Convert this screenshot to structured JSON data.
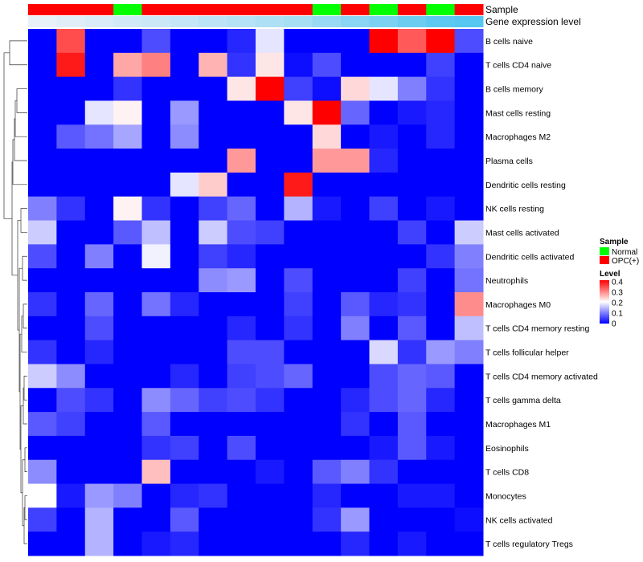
{
  "chart_data": {
    "type": "heatmap",
    "rows": [
      "B cells naive",
      "T cells CD4 naive",
      "B cells memory",
      "Mast cells resting",
      "Macrophages M2",
      "Plasma cells",
      "Dendritic cells resting",
      "NK cells resting",
      "Mast cells activated",
      "Dendritic cells activated",
      "Neutrophils",
      "Macrophages M0",
      "T cells CD4 memory resting",
      "T cells follicular helper",
      "T cells CD4 memory activated",
      "T cells gamma delta",
      "Macrophages M1",
      "Eosinophils",
      "T cells CD8",
      "Monocytes",
      "NK cells activated",
      "T cells regulatory  Tregs"
    ],
    "values": [
      [
        0.0,
        0.34,
        0.0,
        0.0,
        0.06,
        0.0,
        0.0,
        0.03,
        0.18,
        0.0,
        0.0,
        0.0,
        0.4,
        0.33,
        0.4,
        0.06
      ],
      [
        0.0,
        0.38,
        0.0,
        0.27,
        0.3,
        0.0,
        0.26,
        0.04,
        0.22,
        0.01,
        0.06,
        0.0,
        0.0,
        0.0,
        0.05,
        0.0
      ],
      [
        0.0,
        0.0,
        0.0,
        0.04,
        0.0,
        0.0,
        0.0,
        0.22,
        0.4,
        0.05,
        0.01,
        0.23,
        0.18,
        0.1,
        0.04,
        0.0
      ],
      [
        0.0,
        0.0,
        0.18,
        0.21,
        0.0,
        0.12,
        0.0,
        0.0,
        0.0,
        0.22,
        0.4,
        0.08,
        0.0,
        0.02,
        0.03,
        0.0
      ],
      [
        0.0,
        0.07,
        0.09,
        0.13,
        0.0,
        0.11,
        0.0,
        0.0,
        0.0,
        0.0,
        0.23,
        0.0,
        0.02,
        0.0,
        0.03,
        0.0
      ],
      [
        0.0,
        0.0,
        0.0,
        0.0,
        0.0,
        0.0,
        0.0,
        0.28,
        0.0,
        0.0,
        0.28,
        0.28,
        0.03,
        0.0,
        0.0,
        0.0
      ],
      [
        0.0,
        0.0,
        0.0,
        0.0,
        0.0,
        0.18,
        0.24,
        0.0,
        0.0,
        0.38,
        0.0,
        0.0,
        0.0,
        0.0,
        0.0,
        0.0
      ],
      [
        0.1,
        0.04,
        0.0,
        0.21,
        0.04,
        0.0,
        0.05,
        0.08,
        0.0,
        0.14,
        0.02,
        0.0,
        0.05,
        0.0,
        0.02,
        0.0
      ],
      [
        0.16,
        0.0,
        0.0,
        0.07,
        0.15,
        0.0,
        0.16,
        0.06,
        0.05,
        0.0,
        0.0,
        0.0,
        0.0,
        0.05,
        0.0,
        0.16
      ],
      [
        0.06,
        0.0,
        0.1,
        0.0,
        0.19,
        0.0,
        0.05,
        0.03,
        0.0,
        0.0,
        0.0,
        0.0,
        0.0,
        0.0,
        0.04,
        0.1
      ],
      [
        0.0,
        0.0,
        0.0,
        0.0,
        0.0,
        0.0,
        0.11,
        0.12,
        0.0,
        0.06,
        0.0,
        0.0,
        0.0,
        0.05,
        0.0,
        0.09
      ],
      [
        0.04,
        0.0,
        0.08,
        0.0,
        0.09,
        0.03,
        0.0,
        0.0,
        0.0,
        0.05,
        0.0,
        0.07,
        0.03,
        0.04,
        0.0,
        0.29
      ],
      [
        0.0,
        0.0,
        0.06,
        0.0,
        0.0,
        0.0,
        0.0,
        0.03,
        0.0,
        0.04,
        0.0,
        0.1,
        0.0,
        0.07,
        0.0,
        0.15
      ],
      [
        0.04,
        0.0,
        0.03,
        0.0,
        0.0,
        0.0,
        0.0,
        0.06,
        0.06,
        0.0,
        0.0,
        0.0,
        0.17,
        0.04,
        0.12,
        0.1
      ],
      [
        0.16,
        0.11,
        0.0,
        0.0,
        0.0,
        0.03,
        0.0,
        0.05,
        0.06,
        0.08,
        0.0,
        0.0,
        0.06,
        0.08,
        0.07,
        0.0
      ],
      [
        0.0,
        0.06,
        0.04,
        0.0,
        0.11,
        0.08,
        0.05,
        0.06,
        0.04,
        0.0,
        0.0,
        0.03,
        0.06,
        0.08,
        0.03,
        0.0
      ],
      [
        0.07,
        0.05,
        0.0,
        0.0,
        0.07,
        0.0,
        0.0,
        0.0,
        0.0,
        0.0,
        0.0,
        0.04,
        0.0,
        0.07,
        0.0,
        0.0
      ],
      [
        0.0,
        0.0,
        0.0,
        0.0,
        0.04,
        0.05,
        0.0,
        0.06,
        0.0,
        0.0,
        0.0,
        0.0,
        0.02,
        0.07,
        0.02,
        0.0
      ],
      [
        0.11,
        0.0,
        0.0,
        0.0,
        0.25,
        0.0,
        0.0,
        0.0,
        0.02,
        0.0,
        0.07,
        0.1,
        0.04,
        0.0,
        0.0,
        0.0
      ],
      [
        0.2,
        0.02,
        0.12,
        0.1,
        0.0,
        0.03,
        0.04,
        0.0,
        0.0,
        0.0,
        0.03,
        0.0,
        0.0,
        0.02,
        0.02,
        0.0
      ],
      [
        0.05,
        0.0,
        0.14,
        0.0,
        0.0,
        0.07,
        0.0,
        0.0,
        0.0,
        0.0,
        0.04,
        0.12,
        0.0,
        0.0,
        0.0,
        0.01
      ],
      [
        0.0,
        0.0,
        0.14,
        0.0,
        0.02,
        0.03,
        0.0,
        0.0,
        0.0,
        0.0,
        0.0,
        0.03,
        0.0,
        0.02,
        0.0,
        0.0
      ]
    ],
    "annotations": {
      "sample": {
        "label": "Sample",
        "values": [
          "OPC(+)",
          "OPC(+)",
          "OPC(+)",
          "Normal",
          "OPC(+)",
          "OPC(+)",
          "OPC(+)",
          "OPC(+)",
          "OPC(+)",
          "OPC(+)",
          "Normal",
          "OPC(+)",
          "Normal",
          "OPC(+)",
          "Normal",
          "OPC(+)"
        ]
      },
      "gene_expression": {
        "label": "Gene expression level",
        "levels": [
          0,
          0.05,
          0.1,
          0.15,
          0.2,
          0.25,
          0.3,
          0.35,
          0.4,
          0.45,
          0.55,
          0.65,
          0.75,
          0.85,
          0.95,
          1.0
        ]
      }
    },
    "legend": {
      "sample_title": "Sample",
      "sample_items": [
        {
          "label": "Normal",
          "color": "#00ff00"
        },
        {
          "label": "OPC(+)",
          "color": "#ff0000"
        }
      ],
      "level_title": "Level",
      "level_ticks": [
        "0.4",
        "0.3",
        "0.2",
        "0.1",
        "0"
      ],
      "scale": {
        "low": "#0000ff",
        "mid": "#ffffff",
        "high": "#ff0000",
        "min": 0,
        "mid_value": 0.2,
        "max": 0.4
      }
    },
    "dendrogram": "row"
  }
}
